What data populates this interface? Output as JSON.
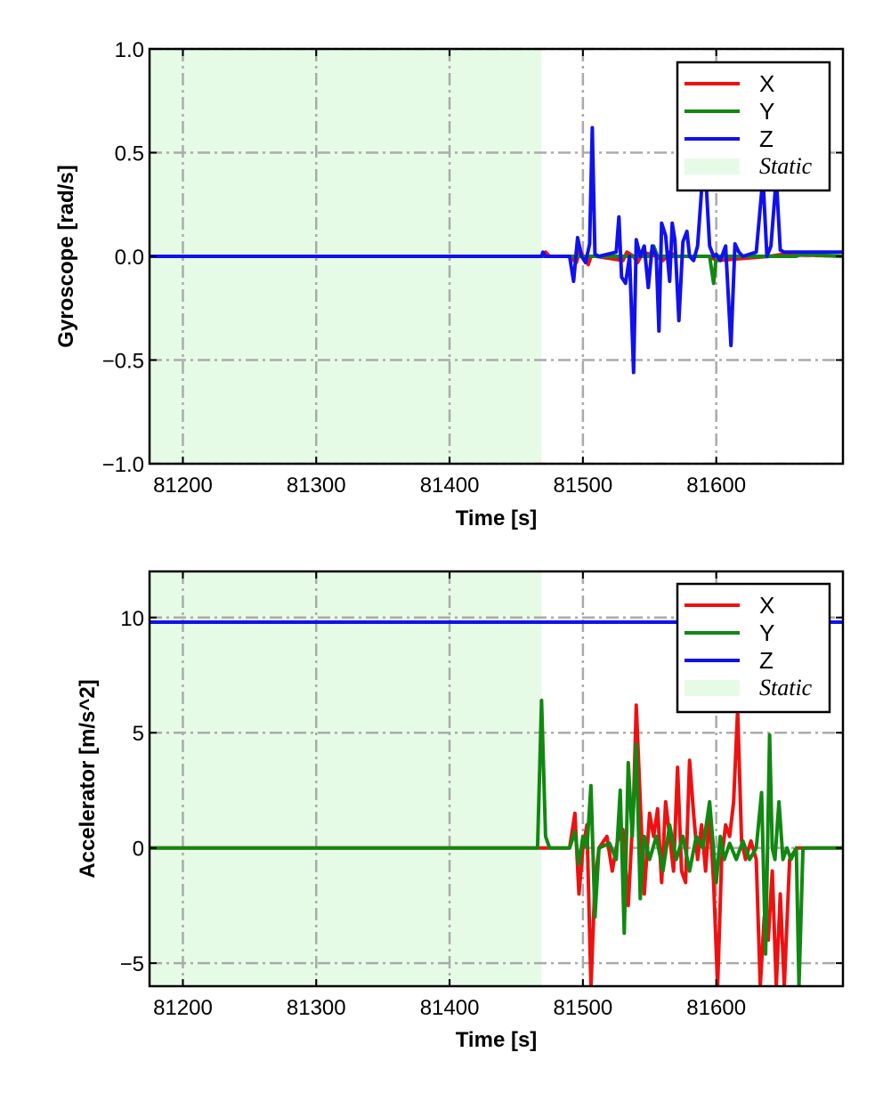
{
  "chart_data": [
    {
      "type": "line",
      "xlabel": "Time [s]",
      "ylabel": "Gyroscope [rad/s]",
      "xlim": [
        81175,
        81695
      ],
      "ylim": [
        -1.0,
        1.0
      ],
      "xticks": [
        81200,
        81300,
        81400,
        81500,
        81600
      ],
      "xtick_labels": [
        "81200",
        "81300",
        "81400",
        "81500",
        "81600"
      ],
      "yticks": [
        -1.0,
        -0.5,
        0.0,
        0.5,
        1.0
      ],
      "ytick_labels": [
        "−1.0",
        "−0.5",
        "0.0",
        "0.5",
        "1.0"
      ],
      "grid": true,
      "legend_position": "top-right",
      "static_region": {
        "label": "Static",
        "x_start": 81175,
        "x_end": 81469,
        "color": "#e6fbe6"
      },
      "series": [
        {
          "name": "X",
          "color": "#ee1111",
          "x": [
            81175,
            81469,
            81472,
            81475,
            81490,
            81495,
            81498,
            81500,
            81504,
            81506,
            81510,
            81530,
            81533,
            81538,
            81541,
            81545,
            81555,
            81560,
            81565,
            81570,
            81580,
            81595,
            81600,
            81640,
            81650,
            81695
          ],
          "y": [
            0,
            0,
            0.02,
            0,
            0,
            -0.03,
            0.03,
            0,
            -0.04,
            0,
            0,
            -0.02,
            0.02,
            0,
            -0.03,
            0.02,
            0,
            -0.02,
            0.02,
            0,
            0,
            0,
            -0.02,
            0,
            0.01,
            0
          ]
        },
        {
          "name": "Y",
          "color": "#118811",
          "x": [
            81175,
            81469,
            81500,
            81530,
            81550,
            81553,
            81556,
            81560,
            81595,
            81598,
            81600,
            81602,
            81640,
            81660,
            81663,
            81695
          ],
          "y": [
            0,
            0,
            0,
            0,
            0,
            0.05,
            0,
            0,
            0,
            -0.13,
            0,
            0,
            0,
            0,
            0.01,
            0
          ]
        },
        {
          "name": "Z",
          "color": "#1111ee",
          "x": [
            81175,
            81469,
            81470,
            81472,
            81490,
            81493,
            81496,
            81499,
            81502,
            81505,
            81507,
            81509,
            81512,
            81525,
            81527,
            81529,
            81532,
            81535,
            81538,
            81540,
            81543,
            81546,
            81549,
            81552,
            81555,
            81557,
            81559,
            81562,
            81565,
            81567,
            81569,
            81572,
            81575,
            81578,
            81580,
            81583,
            81586,
            81589,
            81592,
            81595,
            81598,
            81600,
            81603,
            81607,
            81611,
            81614,
            81617,
            81620,
            81630,
            81635,
            81638,
            81641,
            81645,
            81648,
            81651,
            81655,
            81695
          ],
          "y": [
            0,
            0,
            0.02,
            0,
            0,
            -0.12,
            0.09,
            0,
            -0.03,
            0.06,
            0.62,
            0.01,
            0,
            0.02,
            0.19,
            -0.1,
            -0.13,
            0,
            -0.56,
            0.08,
            0,
            0.05,
            -0.15,
            0.05,
            0,
            -0.36,
            0.16,
            0.1,
            -0.12,
            0.16,
            0.08,
            -0.31,
            0.07,
            0.12,
            0,
            -0.02,
            0.05,
            0.32,
            0.4,
            0.05,
            0,
            0.01,
            -0.02,
            0.05,
            -0.43,
            0.06,
            0.02,
            0,
            0.02,
            0.38,
            0,
            0.05,
            0.38,
            0.03,
            0.02,
            0.02,
            0.02
          ]
        }
      ]
    },
    {
      "type": "line",
      "xlabel": "Time [s]",
      "ylabel": "Accelerator [m/s^2]",
      "xlim": [
        81175,
        81695
      ],
      "ylim": [
        -6.0,
        12.0
      ],
      "xticks": [
        81200,
        81300,
        81400,
        81500,
        81600
      ],
      "xtick_labels": [
        "81200",
        "81300",
        "81400",
        "81500",
        "81600"
      ],
      "yticks": [
        -5,
        0,
        5,
        10
      ],
      "ytick_labels": [
        "−5",
        "0",
        "5",
        "10"
      ],
      "grid": true,
      "legend_position": "top-right",
      "static_region": {
        "label": "Static",
        "x_start": 81175,
        "x_end": 81469,
        "color": "#e6fbe6"
      },
      "series": [
        {
          "name": "X",
          "color": "#ee1111",
          "x": [
            81175,
            81469,
            81490,
            81494,
            81497,
            81500,
            81503,
            81506,
            81509,
            81512,
            81518,
            81522,
            81526,
            81530,
            81534,
            81538,
            81540,
            81543,
            81546,
            81550,
            81553,
            81556,
            81559,
            81562,
            81565,
            81568,
            81571,
            81574,
            81577,
            81580,
            81583,
            81586,
            81589,
            81592,
            81595,
            81598,
            81601,
            81604,
            81607,
            81610,
            81613,
            81616,
            81619,
            81622,
            81626,
            81630,
            81633,
            81636,
            81639,
            81642,
            81645,
            81648,
            81651,
            81655,
            81660,
            81695
          ],
          "y": [
            0,
            0,
            0,
            1.5,
            -2.0,
            0,
            1.0,
            -6.0,
            -1.5,
            0,
            0.5,
            -1.0,
            0.3,
            0.8,
            -2.5,
            2.0,
            6.2,
            2.0,
            -2.0,
            1.5,
            0.5,
            1.7,
            -1.5,
            2.0,
            0.5,
            -1.0,
            3.5,
            -1.0,
            -1.5,
            3.8,
            1.5,
            -0.5,
            1.0,
            -1.0,
            1.5,
            -1.5,
            -6.0,
            -0.5,
            1.0,
            0.5,
            2.0,
            6.0,
            0.3,
            -0.5,
            0.3,
            -0.5,
            -6.0,
            -3.0,
            -4.0,
            -1.0,
            -6.0,
            -2.0,
            -6.0,
            -0.5,
            0,
            0
          ]
        },
        {
          "name": "Y",
          "color": "#118811",
          "x": [
            81175,
            81466,
            81469,
            81472,
            81475,
            81490,
            81494,
            81497,
            81500,
            81503,
            81506,
            81509,
            81512,
            81520,
            81525,
            81528,
            81531,
            81534,
            81537,
            81540,
            81543,
            81546,
            81550,
            81555,
            81560,
            81565,
            81570,
            81575,
            81580,
            81585,
            81590,
            81595,
            81600,
            81603,
            81606,
            81610,
            81615,
            81620,
            81625,
            81630,
            81634,
            81637,
            81640,
            81642,
            81644,
            81647,
            81650,
            81653,
            81656,
            81660,
            81662,
            81665,
            81695
          ],
          "y": [
            0,
            0,
            6.4,
            0.5,
            0,
            0,
            0.7,
            -0.7,
            0.5,
            0,
            2.7,
            -3.0,
            0,
            0.2,
            -0.5,
            2.5,
            -3.7,
            3.7,
            0.5,
            4.5,
            -2.2,
            0.5,
            -0.5,
            0.5,
            -1.0,
            1.0,
            -0.5,
            0.5,
            -1.0,
            0.5,
            0,
            2.0,
            -1.5,
            0.5,
            -0.5,
            0.2,
            -0.5,
            0.3,
            -0.5,
            0,
            2.4,
            -4.6,
            4.9,
            0,
            -0.5,
            2.0,
            -0.5,
            0,
            -0.5,
            0,
            -6.0,
            0,
            0
          ]
        },
        {
          "name": "Z",
          "color": "#1111ee",
          "x": [
            81175,
            81695
          ],
          "y": [
            9.8,
            9.8
          ]
        }
      ]
    }
  ]
}
